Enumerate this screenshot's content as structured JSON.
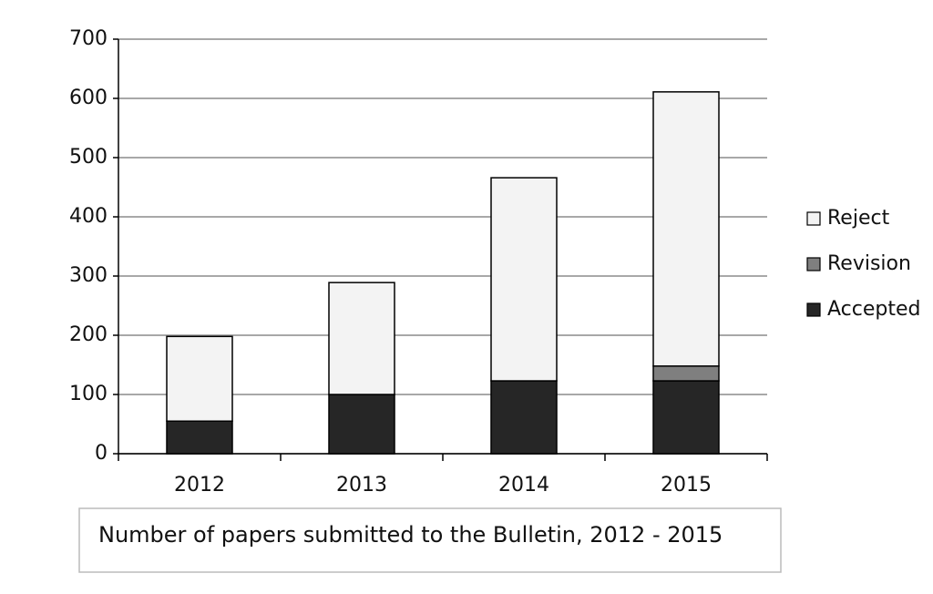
{
  "chart_data": {
    "type": "stacked-bar",
    "title": "Number of papers submitted to the Bulletin, 2012 - 2015",
    "categories": [
      "2012",
      "2013",
      "2014",
      "2015"
    ],
    "series": [
      {
        "name": "Accepted",
        "color": "#262626",
        "values": [
          55,
          100,
          123,
          123
        ]
      },
      {
        "name": "Revision",
        "color": "#7f7f7f",
        "values": [
          0,
          0,
          0,
          25
        ]
      },
      {
        "name": "Reject",
        "color": "#f3f3f3",
        "values": [
          143,
          189,
          343,
          463
        ]
      }
    ],
    "ylim": [
      0,
      700
    ],
    "yticks": [
      0,
      100,
      200,
      300,
      400,
      500,
      600,
      700
    ],
    "grid": true,
    "legend": "right"
  }
}
